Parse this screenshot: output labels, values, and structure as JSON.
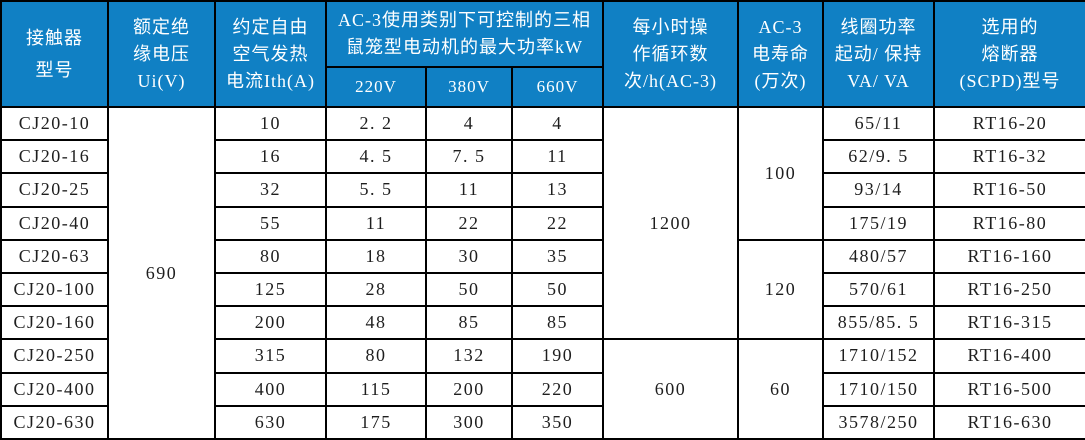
{
  "table": {
    "title": "CJ20 contactor specification table",
    "colors": {
      "header_bg": "#1080c4",
      "header_text": "#ffffff",
      "border": "#000000",
      "body_text": "#1e1e1e"
    },
    "header": {
      "contactor": [
        "接触器",
        "型号"
      ],
      "voltage": [
        "额定绝",
        "缘电压",
        "Ui(V)"
      ],
      "current": [
        "约定自由",
        "空气发热",
        "电流Ith(A)"
      ],
      "power_group": [
        "AC-3使用类别下可控制的三相",
        "鼠笼型电动机的最大功率kW"
      ],
      "power_subs": [
        "220V",
        "380V",
        "660V"
      ],
      "cycles": [
        "每小时操",
        "作循环数",
        "次/h(AC-3)"
      ],
      "life": [
        "AC-3",
        "电寿命",
        "(万次)"
      ],
      "coil": [
        "线圈功率",
        "起动/ 保持",
        "VA/ VA"
      ],
      "fuse": [
        "选用的",
        "熔断器",
        "(SCPD)型号"
      ]
    },
    "rows": [
      {
        "model": "CJ20-10",
        "ith": "10",
        "p220": "2. 2",
        "p380": "4",
        "p660": "4",
        "coil": "65/11",
        "fuse": "RT16-20"
      },
      {
        "model": "CJ20-16",
        "ith": "16",
        "p220": "4. 5",
        "p380": "7. 5",
        "p660": "11",
        "coil": "62/9. 5",
        "fuse": "RT16-32"
      },
      {
        "model": "CJ20-25",
        "ith": "32",
        "p220": "5. 5",
        "p380": "11",
        "p660": "13",
        "coil": "93/14",
        "fuse": "RT16-50"
      },
      {
        "model": "CJ20-40",
        "ith": "55",
        "p220": "11",
        "p380": "22",
        "p660": "22",
        "coil": "175/19",
        "fuse": "RT16-80"
      },
      {
        "model": "CJ20-63",
        "ith": "80",
        "p220": "18",
        "p380": "30",
        "p660": "35",
        "coil": "480/57",
        "fuse": "RT16-160"
      },
      {
        "model": "CJ20-100",
        "ith": "125",
        "p220": "28",
        "p380": "50",
        "p660": "50",
        "coil": "570/61",
        "fuse": "RT16-250"
      },
      {
        "model": "CJ20-160",
        "ith": "200",
        "p220": "48",
        "p380": "85",
        "p660": "85",
        "coil": "855/85. 5",
        "fuse": "RT16-315"
      },
      {
        "model": "CJ20-250",
        "ith": "315",
        "p220": "80",
        "p380": "132",
        "p660": "190",
        "coil": "1710/152",
        "fuse": "RT16-400"
      },
      {
        "model": "CJ20-400",
        "ith": "400",
        "p220": "115",
        "p380": "200",
        "p660": "220",
        "coil": "1710/150",
        "fuse": "RT16-500"
      },
      {
        "model": "CJ20-630",
        "ith": "630",
        "p220": "175",
        "p380": "300",
        "p660": "350",
        "coil": "3578/250",
        "fuse": "RT16-630"
      }
    ],
    "merges": [
      {
        "row": 0,
        "col": "ui",
        "value": "690",
        "rowspan": 10
      },
      {
        "row": 0,
        "col": "cycles",
        "value": "1200",
        "rowspan": 7
      },
      {
        "row": 0,
        "col": "life",
        "value": "100",
        "rowspan": 4
      },
      {
        "row": 4,
        "col": "life",
        "value": "120",
        "rowspan": 3
      },
      {
        "row": 7,
        "col": "cycles",
        "value": "600",
        "rowspan": 3
      },
      {
        "row": 7,
        "col": "life",
        "value": "60",
        "rowspan": 3
      }
    ]
  }
}
